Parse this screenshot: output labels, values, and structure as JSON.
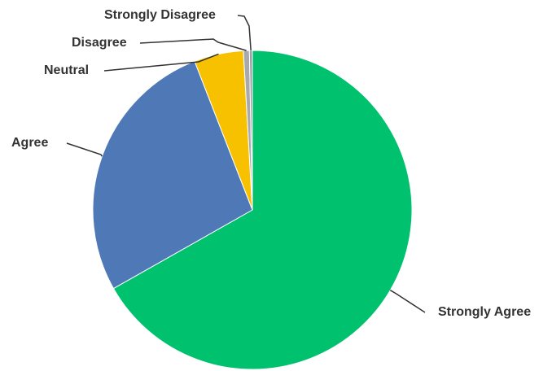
{
  "chart_data": {
    "type": "pie",
    "title": "",
    "slices": [
      {
        "label": "Strongly Agree",
        "value": 66.8,
        "color": "#00c16e"
      },
      {
        "label": "Agree",
        "value": 27.3,
        "color": "#4e79b6"
      },
      {
        "label": "Neutral",
        "value": 5.0,
        "color": "#f7c100"
      },
      {
        "label": "Disagree",
        "value": 0.6,
        "color": "#a7a9ac"
      },
      {
        "label": "Strongly Disagree",
        "value": 0.3,
        "color": "#9aa0a6"
      }
    ],
    "start_angle": "12 o'clock",
    "direction": "clockwise",
    "legend": "none",
    "labels": "outside with leader lines"
  }
}
